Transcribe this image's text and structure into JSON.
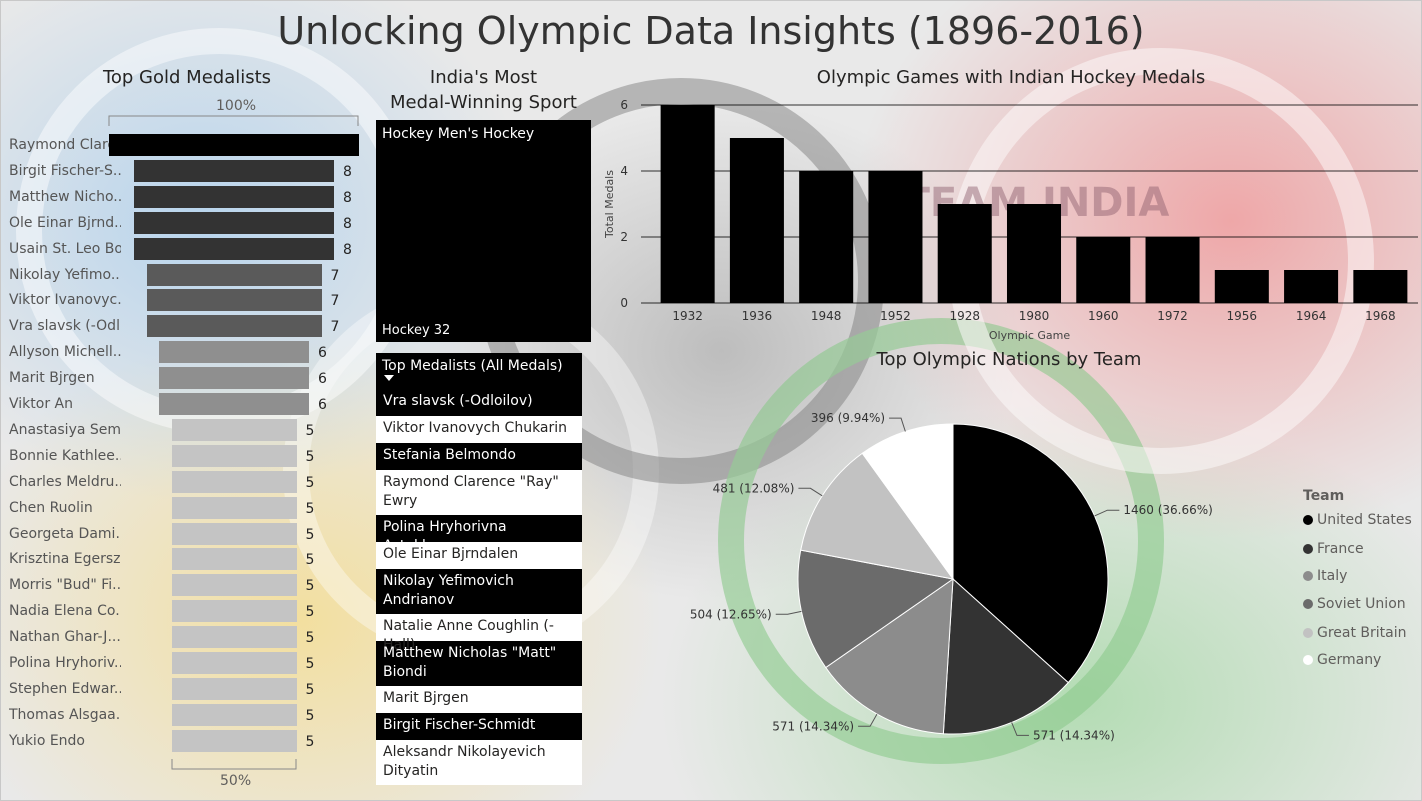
{
  "report_title": "Unlocking Olympic Data  Insights (1896-2016)",
  "gold": {
    "title": "Top Gold Medalists",
    "top_axis_label": "100%",
    "bottom_axis_label": "50%",
    "items": [
      {
        "name": "Raymond Clare...",
        "value": 10,
        "show_value": false,
        "color": "#000000"
      },
      {
        "name": "Birgit Fischer-S...",
        "value": 8,
        "show_value": true,
        "color": "#333333"
      },
      {
        "name": "Matthew Nicho...",
        "value": 8,
        "show_value": true,
        "color": "#333333"
      },
      {
        "name": "Ole Einar Bjrnd...",
        "value": 8,
        "show_value": true,
        "color": "#333333"
      },
      {
        "name": "Usain St. Leo Bolt",
        "value": 8,
        "show_value": true,
        "color": "#333333"
      },
      {
        "name": "Nikolay Yefimo...",
        "value": 7,
        "show_value": true,
        "color": "#5a5a5a"
      },
      {
        "name": "Viktor Ivanovyc...",
        "value": 7,
        "show_value": true,
        "color": "#5a5a5a"
      },
      {
        "name": "Vra slavsk (-Odl...",
        "value": 7,
        "show_value": true,
        "color": "#5a5a5a"
      },
      {
        "name": "Allyson Michell...",
        "value": 6,
        "show_value": true,
        "color": "#8f8f8f"
      },
      {
        "name": "Marit Bjrgen",
        "value": 6,
        "show_value": true,
        "color": "#8f8f8f"
      },
      {
        "name": "Viktor An",
        "value": 6,
        "show_value": true,
        "color": "#8f8f8f"
      },
      {
        "name": "Anastasiya Sem...",
        "value": 5,
        "show_value": true,
        "color": "#c4c4c4"
      },
      {
        "name": "Bonnie Kathlee...",
        "value": 5,
        "show_value": true,
        "color": "#c4c4c4"
      },
      {
        "name": "Charles Meldru...",
        "value": 5,
        "show_value": true,
        "color": "#c4c4c4"
      },
      {
        "name": "Chen Ruolin",
        "value": 5,
        "show_value": true,
        "color": "#c4c4c4"
      },
      {
        "name": "Georgeta Dami...",
        "value": 5,
        "show_value": true,
        "color": "#c4c4c4"
      },
      {
        "name": "Krisztina Egersz...",
        "value": 5,
        "show_value": true,
        "color": "#c4c4c4"
      },
      {
        "name": "Morris \"Bud\" Fi...",
        "value": 5,
        "show_value": true,
        "color": "#c4c4c4"
      },
      {
        "name": "Nadia Elena Co...",
        "value": 5,
        "show_value": true,
        "color": "#c4c4c4"
      },
      {
        "name": "Nathan Ghar-J...",
        "value": 5,
        "show_value": true,
        "color": "#c4c4c4"
      },
      {
        "name": "Polina Hryhoriv...",
        "value": 5,
        "show_value": true,
        "color": "#c4c4c4"
      },
      {
        "name": "Stephen Edwar...",
        "value": 5,
        "show_value": true,
        "color": "#c4c4c4"
      },
      {
        "name": "Thomas Alsgaa...",
        "value": 5,
        "show_value": true,
        "color": "#c4c4c4"
      },
      {
        "name": "Yukio Endo",
        "value": 5,
        "show_value": true,
        "color": "#c4c4c4"
      }
    ]
  },
  "india_sport": {
    "title_line1": "India's Most",
    "title_line2": "Medal-Winning Sport",
    "card_top": "Hockey Men's Hockey",
    "card_bottom": "Hockey 32"
  },
  "medalists_list": {
    "header": "Top Medalists (All Medals)",
    "rows": [
      {
        "text": "Vra slavsk (-Odloilov)",
        "dark": true
      },
      {
        "text": "Viktor Ivanovych Chukarin",
        "dark": false
      },
      {
        "text": "Stefania Belmondo",
        "dark": true
      },
      {
        "text": "Raymond Clarence \"Ray\" Ewry",
        "dark": false
      },
      {
        "text": "Polina Hryhorivna Astakhova",
        "dark": true
      },
      {
        "text": "Ole Einar Bjrndalen",
        "dark": false
      },
      {
        "text": "Nikolay Yefimovich Andrianov",
        "dark": true
      },
      {
        "text": "Natalie Anne Coughlin (-Hall)",
        "dark": false
      },
      {
        "text": "Matthew Nicholas \"Matt\" Biondi",
        "dark": true
      },
      {
        "text": "Marit Bjrgen",
        "dark": false
      },
      {
        "text": "Birgit Fischer-Schmidt",
        "dark": true
      },
      {
        "text": "Aleksandr Nikolayevich Dityatin",
        "dark": false
      }
    ]
  },
  "background_logo_text": "TEAM INDIA",
  "chart_data": [
    {
      "type": "bar",
      "title": "Olympic Games with Indian Hockey Medals",
      "xlabel": "Olympic Game",
      "ylabel": "Total Medals",
      "categories": [
        "1932",
        "1936",
        "1948",
        "1952",
        "1928",
        "1980",
        "1960",
        "1972",
        "1956",
        "1964",
        "1968"
      ],
      "values": [
        6,
        5,
        4,
        4,
        3,
        3,
        2,
        2,
        1,
        1,
        1
      ],
      "ylim": [
        0,
        6
      ],
      "yticks": [
        "0",
        "2",
        "4",
        "6"
      ],
      "grid": true,
      "color": "#000000"
    },
    {
      "type": "pie",
      "title": "Top Olympic Nations by Team",
      "legend_title": "Team",
      "legend_position": "right",
      "slices": [
        {
          "name": "United States",
          "value": 1460,
          "label": "1460 (36.66%)",
          "color": "#000000"
        },
        {
          "name": "France",
          "value": 571,
          "label": "571 (14.34%)",
          "color": "#333333"
        },
        {
          "name": "Italy",
          "value": 571,
          "label": "571 (14.34%)",
          "color": "#8c8c8c"
        },
        {
          "name": "Soviet Union",
          "value": 504,
          "label": "504 (12.65%)",
          "color": "#6b6b6b"
        },
        {
          "name": "Great Britain",
          "value": 481,
          "label": "481 (12.08%)",
          "color": "#c2c2c2"
        },
        {
          "name": "Germany",
          "value": 396,
          "label": "396 (9.94%)",
          "color": "#ffffff"
        }
      ]
    }
  ]
}
